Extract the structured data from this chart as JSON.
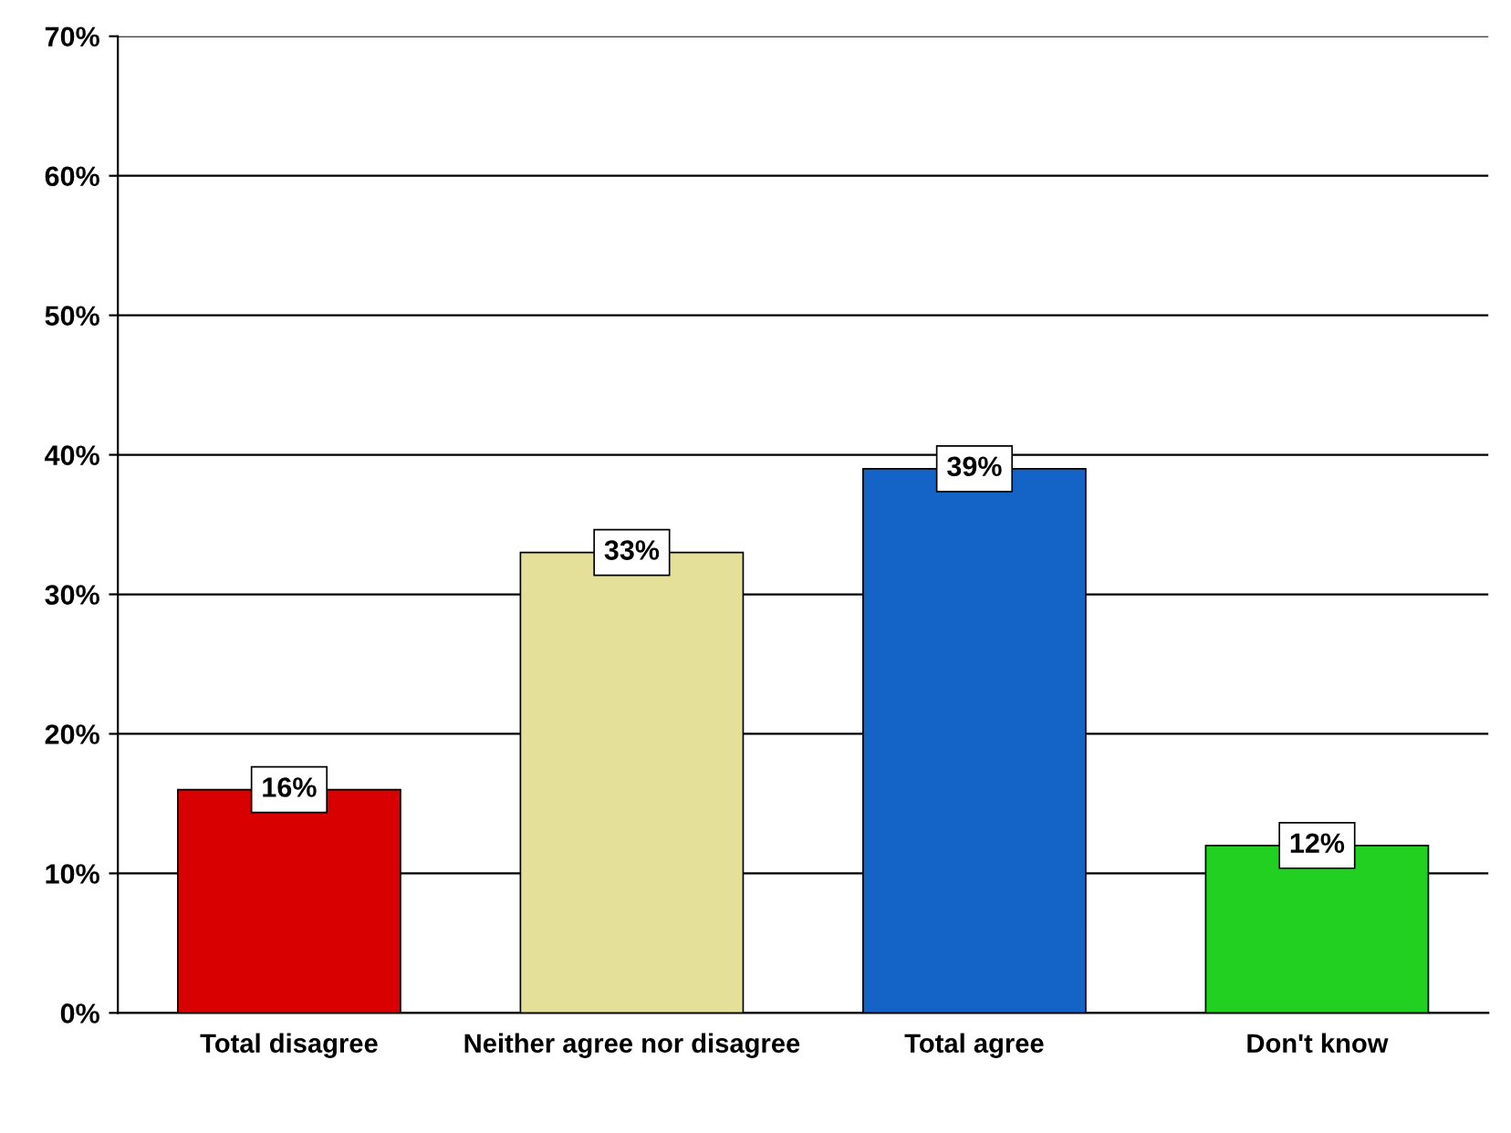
{
  "chart_data": {
    "type": "bar",
    "categories": [
      "Total disagree",
      "Neither agree nor disagree",
      "Total agree",
      "Don't know"
    ],
    "values": [
      16,
      33,
      39,
      12
    ],
    "colors": [
      "#d80000",
      "#e4e09a",
      "#1464c8",
      "#22d022"
    ],
    "value_labels": [
      "16%",
      "33%",
      "39%",
      "12%"
    ],
    "ylim": [
      0,
      70
    ],
    "yticks": [
      {
        "value": 0,
        "label": "0%"
      },
      {
        "value": 10,
        "label": "10%"
      },
      {
        "value": 20,
        "label": "20%"
      },
      {
        "value": 30,
        "label": "30%"
      },
      {
        "value": 40,
        "label": "40%"
      },
      {
        "value": 50,
        "label": "50%"
      },
      {
        "value": 60,
        "label": "60%"
      },
      {
        "value": 70,
        "label": "70%"
      }
    ],
    "grid": "y"
  }
}
